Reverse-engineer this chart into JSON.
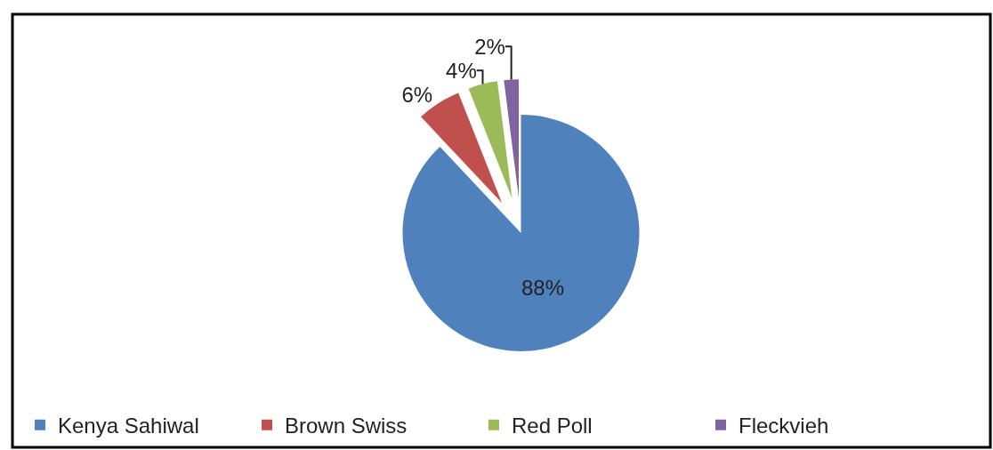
{
  "chart_data": {
    "type": "pie",
    "categories": [
      "Kenya Sahiwal",
      "Brown Swiss",
      "Red Poll",
      "Fleckvieh"
    ],
    "values": [
      88,
      6,
      4,
      2
    ],
    "colors": [
      "#4f81bd",
      "#c0504d",
      "#9bbb59",
      "#8064a2"
    ],
    "value_labels": [
      "88%",
      "6%",
      "4%",
      "2%"
    ],
    "legend": "bottom"
  }
}
